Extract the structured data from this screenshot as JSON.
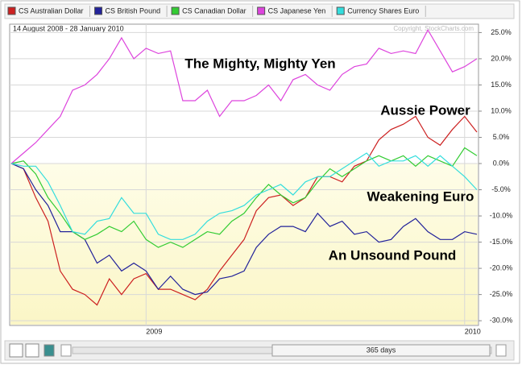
{
  "chart_data": {
    "type": "line",
    "subtitle": "14 August 2008 - 28 January 2010",
    "copyright": "Copyright, StockCharts.com",
    "annotations": [
      "The Mighty, Mighty Yen",
      "Aussie Power",
      "Weakening Euro",
      "An Unsound Pound"
    ],
    "categories": [
      null,
      null,
      null,
      null,
      null,
      null,
      null,
      null,
      null,
      null,
      null,
      "2009",
      null,
      null,
      null,
      null,
      null,
      null,
      null,
      null,
      null,
      null,
      null,
      null,
      null,
      null,
      null,
      null,
      null,
      null,
      null,
      null,
      null,
      null,
      null,
      null,
      null,
      "2010",
      null
    ],
    "series": [
      {
        "name": "CS Australian Dollar",
        "color": "#cc2020",
        "values": [
          0,
          -1,
          -6.5,
          -11,
          -20.5,
          -24,
          -25,
          -27,
          -22,
          -25,
          -22,
          -21,
          -24,
          -24,
          -25,
          -26,
          -24,
          -20.5,
          -17.5,
          -14.5,
          -9,
          -6.5,
          -6,
          -8,
          -6.5,
          -2.5,
          -2.5,
          -3.5,
          -0.5,
          0.5,
          4.5,
          6.5,
          7.5,
          9,
          5,
          3.5,
          6.5,
          9,
          6
        ]
      },
      {
        "name": "CS British Pound",
        "color": "#22229a",
        "values": [
          0,
          -1,
          -5,
          -8,
          -13,
          -13,
          -14.5,
          -19,
          -17.5,
          -20.5,
          -19,
          -20.5,
          -24,
          -21.5,
          -24,
          -25,
          -24.5,
          -22,
          -21.5,
          -20.5,
          -16,
          -13.5,
          -12,
          -12,
          -13,
          -9.5,
          -12,
          -11,
          -13.5,
          -13,
          -15,
          -14.5,
          -12,
          -10.5,
          -13,
          -14.5,
          -14.5,
          -13,
          -13.5
        ]
      },
      {
        "name": "CS Canadian Dollar",
        "color": "#33cc33",
        "values": [
          0,
          0.5,
          -2,
          -6.5,
          -9.5,
          -13,
          -14.5,
          -13.5,
          -12,
          -13,
          -11,
          -14.5,
          -16,
          -15,
          -16,
          -14.5,
          -13,
          -13.5,
          -11,
          -9.5,
          -6.5,
          -4,
          -6,
          -7.5,
          -6.5,
          -3.5,
          -1,
          -2.5,
          -1,
          0.5,
          1.5,
          0.5,
          1.5,
          -0.5,
          1.5,
          0.5,
          -0.5,
          3,
          1.5
        ]
      },
      {
        "name": "CS Japanese Yen",
        "color": "#dd44dd",
        "values": [
          0,
          2,
          4,
          6.5,
          9,
          14,
          15,
          17,
          20,
          24,
          20,
          22,
          21,
          21.5,
          12,
          12,
          14,
          9,
          12,
          12,
          13,
          15,
          12,
          16,
          17,
          15,
          14,
          17,
          18.5,
          19,
          22,
          21,
          21.5,
          21,
          25.5,
          21.5,
          17.5,
          18.5,
          20
        ]
      },
      {
        "name": "Currency Shares Euro",
        "color": "#33dddd",
        "values": [
          0,
          -0.5,
          -0.5,
          -3.5,
          -8,
          -13,
          -13.5,
          -11,
          -10.5,
          -6.5,
          -9.5,
          -9.5,
          -13.5,
          -14.5,
          -14.5,
          -13.5,
          -11,
          -9.5,
          -9,
          -8,
          -6,
          -5,
          -4,
          -6,
          -3.5,
          -2.5,
          -2.5,
          -1,
          0.5,
          2,
          -0.5,
          0.5,
          0.5,
          1.5,
          -0.5,
          1.5,
          -0.5,
          -2.5,
          -5
        ]
      }
    ],
    "ylim": [
      -30.9,
      26.6
    ],
    "yticks": [
      {
        "value": 25,
        "label": "25.0%"
      },
      {
        "value": 20,
        "label": "20.0%"
      },
      {
        "value": 15,
        "label": "15.0%"
      },
      {
        "value": 10,
        "label": "10.0%"
      },
      {
        "value": 5,
        "label": "5.0%"
      },
      {
        "value": 0,
        "label": "0.0%"
      },
      {
        "value": -5,
        "label": "-5.0%"
      },
      {
        "value": -10,
        "label": "-10.0%"
      },
      {
        "value": -15,
        "label": "-15.0%"
      },
      {
        "value": -20,
        "label": "-20.0%"
      },
      {
        "value": -25,
        "label": "-25.0%"
      },
      {
        "value": -30,
        "label": "-30.0%"
      }
    ],
    "grid": true
  },
  "toolbar": {
    "range": "365 days"
  }
}
